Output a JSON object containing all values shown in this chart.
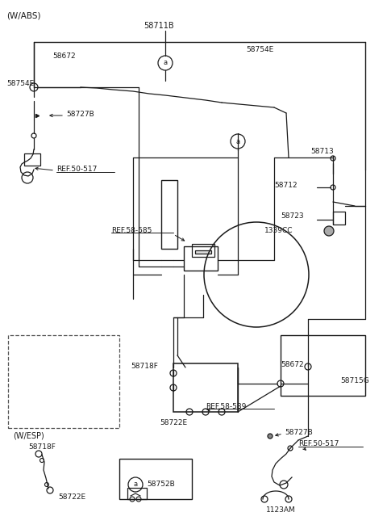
{
  "bg_color": "#ffffff",
  "line_color": "#1a1a1a",
  "text_color": "#1a1a1a",
  "labels": {
    "wabs": "(W/ABS)",
    "wesp": "(W/ESP)",
    "58711B": "58711B",
    "58672_top": "58672",
    "58754E_top": "58754E",
    "58754E_right": "58754E",
    "58727B_top": "58727B",
    "REF50517_top": "REF.50-517",
    "58713": "58713",
    "58712": "58712",
    "58723": "58723",
    "1339CC": "1339CC",
    "REF58585": "REF.58-585",
    "58718F_box": "58718F",
    "58722E_box": "58722E",
    "58718F_main": "58718F",
    "58722E_main": "58722E",
    "REF58589": "REF.58-589",
    "58672_right": "58672",
    "58715G": "58715G",
    "58727B_right": "58727B",
    "REF50517_right": "REF.50-517",
    "1123AM": "1123AM",
    "58752B": "58752B",
    "a_label": "a"
  }
}
